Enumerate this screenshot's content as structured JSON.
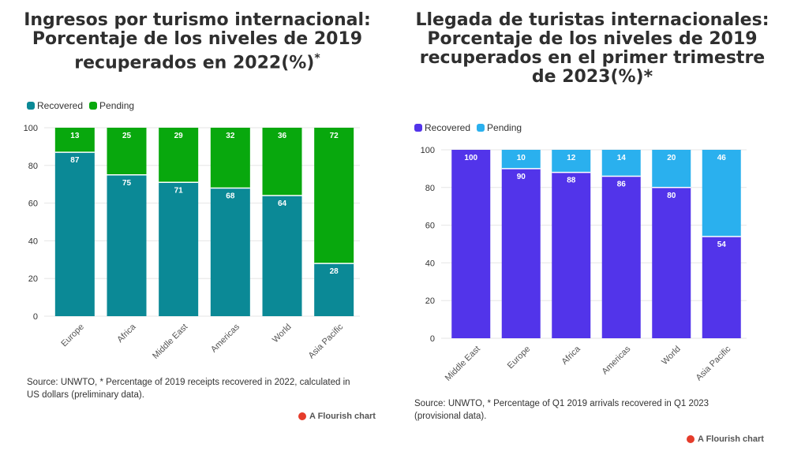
{
  "charts": [
    {
      "title_lines": [
        "Ingresos por turismo internacional:",
        "Porcentaje de los niveles de 2019",
        "recuperados en 2022(%)"
      ],
      "title_suffix": "*",
      "legend": [
        {
          "label": "Recovered",
          "color": "#0b8996"
        },
        {
          "label": "Pending",
          "color": "#08a80d"
        }
      ],
      "source": "Source: UNWTO, * Percentage of 2019 receipts recovered in 2022, calculated in US dollars (preliminary data).",
      "flourish_label": "A Flourish chart"
    },
    {
      "title_lines": [
        "Llegada de turistas internacionales:",
        "Porcentaje de los niveles de 2019",
        "recuperados en el primer trimestre",
        "de 2023(%)*"
      ],
      "title_suffix": "",
      "legend": [
        {
          "label": "Recovered",
          "color": "#5234ea"
        },
        {
          "label": "Pending",
          "color": "#2ab0ee"
        }
      ],
      "source": "Source: UNWTO, * Percentage of Q1 2019 arrivals recovered in Q1 2023 (provisional data).",
      "flourish_label": "A Flourish chart"
    }
  ],
  "chart_data": [
    {
      "type": "bar",
      "stacked": true,
      "title": "Ingresos por turismo internacional: Porcentaje de los niveles de 2019 recuperados en 2022(%)*",
      "categories": [
        "Europe",
        "Africa",
        "Middle East",
        "Americas",
        "World",
        "Asia Pacific"
      ],
      "series": [
        {
          "name": "Recovered",
          "color": "#0b8996",
          "values": [
            87,
            75,
            71,
            68,
            64,
            28
          ]
        },
        {
          "name": "Pending",
          "color": "#08a80d",
          "values": [
            13,
            25,
            29,
            32,
            36,
            72
          ]
        }
      ],
      "ylim": [
        0,
        100
      ],
      "yticks": [
        0,
        20,
        40,
        60,
        80,
        100
      ],
      "grid": true,
      "legend_position": "top-left"
    },
    {
      "type": "bar",
      "stacked": true,
      "title": "Llegada de turistas internacionales: Porcentaje de los niveles de 2019 recuperados en el primer trimestre de 2023(%)*",
      "categories": [
        "Middle East",
        "Europe",
        "Africa",
        "Americas",
        "World",
        "Asia Pacific"
      ],
      "series": [
        {
          "name": "Recovered",
          "color": "#5234ea",
          "values": [
            100,
            90,
            88,
            86,
            80,
            54
          ]
        },
        {
          "name": "Pending",
          "color": "#2ab0ee",
          "values": [
            0,
            10,
            12,
            14,
            20,
            46
          ]
        }
      ],
      "ylim": [
        0,
        100
      ],
      "yticks": [
        0,
        20,
        40,
        60,
        80,
        100
      ],
      "grid": true,
      "legend_position": "top-left"
    }
  ]
}
